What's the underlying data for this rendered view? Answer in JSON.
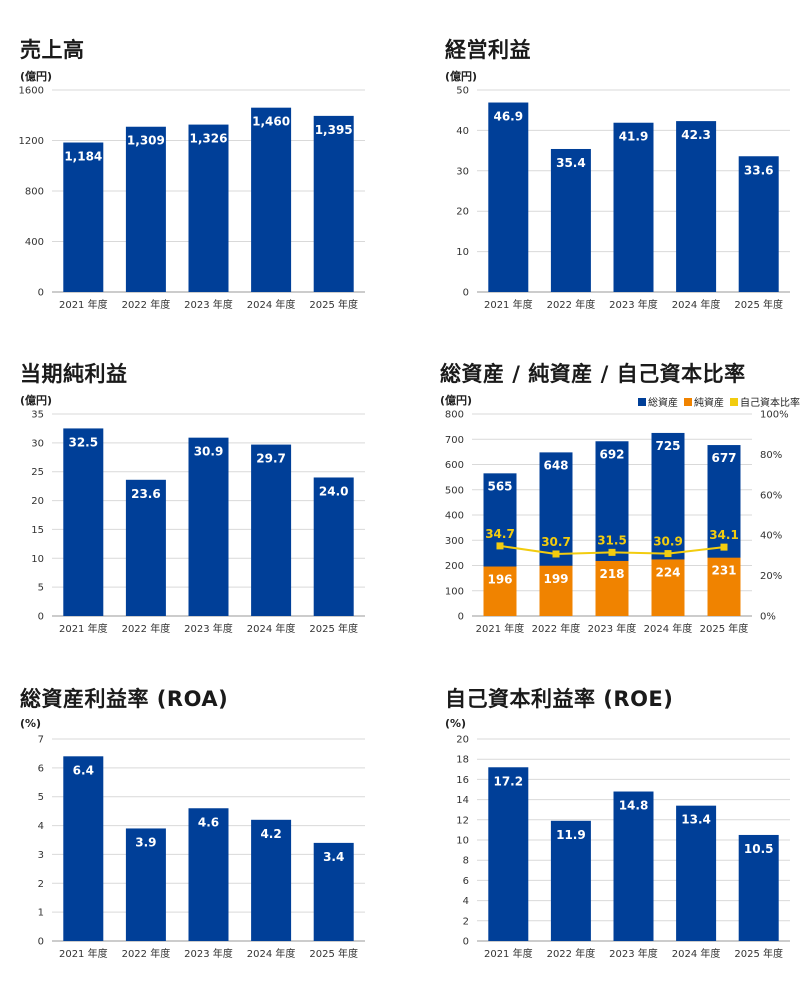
{
  "colors": {
    "navy": "#003f98",
    "orange": "#f08300",
    "yellow": "#f2cc0f",
    "grid": "#d9d9d9",
    "axis": "#999999"
  },
  "chart_data": [
    {
      "id": "sales",
      "type": "bar",
      "title": "売上高",
      "unit": "(億円)",
      "categories": [
        "2021 年度",
        "2022 年度",
        "2023 年度",
        "2024 年度",
        "2025 年度"
      ],
      "ylim": [
        0,
        1600
      ],
      "yticks": [
        0,
        400,
        800,
        1200,
        1600
      ],
      "series": [
        {
          "values": [
            1184,
            1309,
            1326,
            1460,
            1395
          ],
          "labels": [
            "1,184",
            "1,309",
            "1,326",
            "1,460",
            "1,395"
          ],
          "color": "#003f98"
        }
      ],
      "grid": true
    },
    {
      "id": "operating-profit",
      "type": "bar",
      "title": "経営利益",
      "unit": "(億円)",
      "categories": [
        "2021 年度",
        "2022 年度",
        "2023 年度",
        "2024 年度",
        "2025 年度"
      ],
      "ylim": [
        0,
        50
      ],
      "yticks": [
        0,
        10,
        20,
        30,
        40,
        50
      ],
      "series": [
        {
          "values": [
            46.9,
            35.4,
            41.9,
            42.3,
            33.6
          ],
          "labels": [
            "46.9",
            "35.4",
            "41.9",
            "42.3",
            "33.6"
          ],
          "color": "#003f98"
        }
      ],
      "grid": true
    },
    {
      "id": "net-income",
      "type": "bar",
      "title": "当期純利益",
      "unit": "(億円)",
      "categories": [
        "2021 年度",
        "2022 年度",
        "2023 年度",
        "2024 年度",
        "2025 年度"
      ],
      "ylim": [
        0,
        35
      ],
      "yticks": [
        0,
        5,
        10,
        15,
        20,
        25,
        30,
        35
      ],
      "series": [
        {
          "values": [
            32.5,
            23.6,
            30.9,
            29.7,
            24.0
          ],
          "labels": [
            "32.5",
            "23.6",
            "30.9",
            "29.7",
            "24.0"
          ],
          "color": "#003f98"
        }
      ],
      "grid": true
    },
    {
      "id": "assets",
      "type": "bar",
      "title": "総資産 / 純資産 / 自己資本比率",
      "unit": "(億円)",
      "categories": [
        "2021 年度",
        "2022 年度",
        "2023 年度",
        "2024 年度",
        "2025 年度"
      ],
      "ylim": [
        0,
        800
      ],
      "yticks": [
        0,
        100,
        200,
        300,
        400,
        500,
        600,
        700,
        800
      ],
      "y2lim": [
        0,
        100
      ],
      "y2ticks": [
        "0%",
        "20%",
        "40%",
        "60%",
        "80%",
        "100%"
      ],
      "legend": [
        {
          "name": "総資産",
          "color": "#003f98"
        },
        {
          "name": "純資産",
          "color": "#f08300"
        },
        {
          "name": "自己資本比率",
          "color": "#f2cc0f"
        }
      ],
      "legend_position": "top-right",
      "series": [
        {
          "name": "総資産",
          "values": [
            565,
            648,
            692,
            725,
            677
          ],
          "labels": [
            "565",
            "648",
            "692",
            "725",
            "677"
          ],
          "color": "#003f98"
        },
        {
          "name": "純資産",
          "values": [
            196,
            199,
            218,
            224,
            231
          ],
          "labels": [
            "196",
            "199",
            "218",
            "224",
            "231"
          ],
          "color": "#f08300"
        },
        {
          "name": "自己資本比率",
          "kind": "line",
          "axis": "right",
          "values": [
            34.7,
            30.7,
            31.5,
            30.9,
            34.1
          ],
          "labels": [
            "34.7",
            "30.7",
            "31.5",
            "30.9",
            "34.1"
          ],
          "color": "#f2cc0f"
        }
      ],
      "grid": true
    },
    {
      "id": "roa",
      "type": "bar",
      "title": "総資産利益率 (ROA)",
      "unit": "(%)",
      "categories": [
        "2021 年度",
        "2022 年度",
        "2023 年度",
        "2024 年度",
        "2025 年度"
      ],
      "ylim": [
        0,
        7
      ],
      "yticks": [
        0,
        1,
        2,
        3,
        4,
        5,
        6,
        7
      ],
      "series": [
        {
          "values": [
            6.4,
            3.9,
            4.6,
            4.2,
            3.4
          ],
          "labels": [
            "6.4",
            "3.9",
            "4.6",
            "4.2",
            "3.4"
          ],
          "color": "#003f98"
        }
      ],
      "grid": true
    },
    {
      "id": "roe",
      "type": "bar",
      "title": "自己資本利益率 (ROE)",
      "unit": "(%)",
      "categories": [
        "2021 年度",
        "2022 年度",
        "2023 年度",
        "2024 年度",
        "2025 年度"
      ],
      "ylim": [
        0,
        20
      ],
      "yticks": [
        0,
        2,
        4,
        6,
        8,
        10,
        12,
        14,
        16,
        18,
        20
      ],
      "series": [
        {
          "values": [
            17.2,
            11.9,
            14.8,
            13.4,
            10.5
          ],
          "labels": [
            "17.2",
            "11.9",
            "14.8",
            "13.4",
            "10.5"
          ],
          "color": "#003f98"
        }
      ],
      "grid": true
    }
  ]
}
